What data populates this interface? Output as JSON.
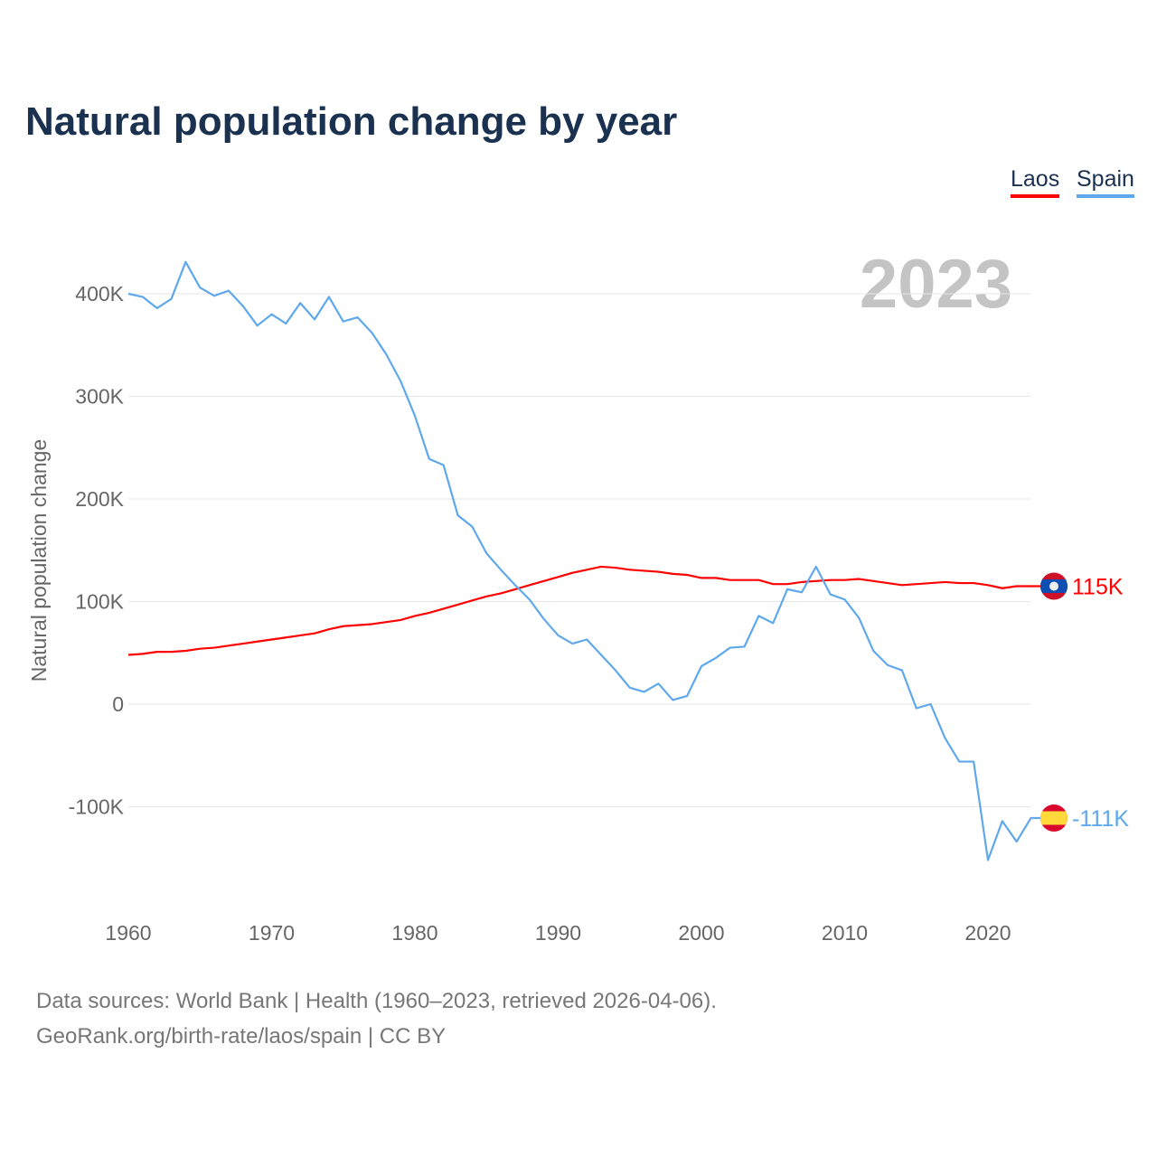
{
  "chart_data": {
    "type": "line",
    "title": "Natural population change by year",
    "ylabel": "Natural population change",
    "xlabel": "",
    "year_watermark": "2023",
    "xlim": [
      1960,
      2023
    ],
    "ylim": [
      -200000,
      450000
    ],
    "grid": true,
    "legend_placement": "top-right",
    "x_ticks": [
      {
        "v": 1960,
        "label": "1960"
      },
      {
        "v": 1970,
        "label": "1970"
      },
      {
        "v": 1980,
        "label": "1980"
      },
      {
        "v": 1990,
        "label": "1990"
      },
      {
        "v": 2000,
        "label": "2000"
      },
      {
        "v": 2010,
        "label": "2010"
      },
      {
        "v": 2020,
        "label": "2020"
      }
    ],
    "y_ticks": [
      {
        "v": -100000,
        "label": "-100K"
      },
      {
        "v": 0,
        "label": "0"
      },
      {
        "v": 100000,
        "label": "100K"
      },
      {
        "v": 200000,
        "label": "200K"
      },
      {
        "v": 300000,
        "label": "300K"
      },
      {
        "v": 400000,
        "label": "400K"
      }
    ],
    "series": [
      {
        "name": "Laos",
        "color": "#ff0000",
        "end_label": "115K",
        "flag": "laos-flag",
        "start": 1960,
        "values_k": [
          48,
          49,
          51,
          51,
          52,
          54,
          55,
          57,
          59,
          61,
          63,
          65,
          67,
          69,
          73,
          76,
          77,
          78,
          80,
          82,
          86,
          89,
          93,
          97,
          101,
          105,
          108,
          112,
          116,
          120,
          124,
          128,
          131,
          134,
          133,
          131,
          130,
          129,
          127,
          126,
          123,
          123,
          121,
          121,
          121,
          117,
          117,
          119,
          120,
          121,
          121,
          122,
          120,
          118,
          116,
          117,
          118,
          119,
          118,
          118,
          116,
          113,
          115,
          115
        ]
      },
      {
        "name": "Spain",
        "color": "#5fa8ec",
        "end_label": "-111K",
        "flag": "spain-flag",
        "start": 1960,
        "values_k": [
          400,
          397,
          386,
          395,
          431,
          406,
          398,
          403,
          388,
          369,
          380,
          371,
          391,
          375,
          397,
          373,
          377,
          362,
          341,
          315,
          281,
          239,
          233,
          184,
          173,
          147,
          131,
          116,
          102,
          83,
          67,
          59,
          63,
          48,
          33,
          16,
          12,
          20,
          4,
          8,
          37,
          45,
          55,
          56,
          86,
          79,
          112,
          109,
          134,
          107,
          102,
          84,
          52,
          38,
          33,
          -4,
          0,
          -33,
          -56,
          -56,
          -152,
          -114,
          -134,
          -111
        ]
      }
    ]
  },
  "footer": {
    "line1": "Data sources: World Bank | Health (1960–2023, retrieved 2026-04-06).",
    "line2": "GeoRank.org/birth-rate/laos/spain | CC BY"
  }
}
